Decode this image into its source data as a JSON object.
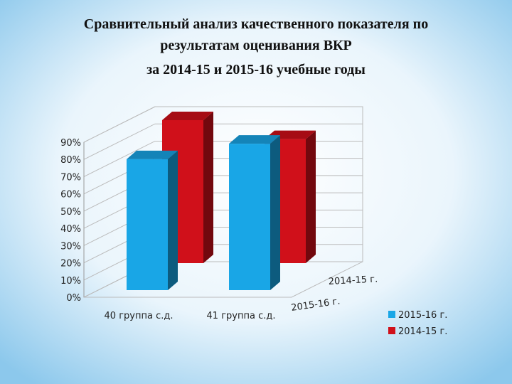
{
  "chart_data": {
    "type": "bar3d",
    "title": [
      "Сравнительный анализ качественного показателя по",
      "результатам оценивания ВКР",
      "за 2014-15 и 2015-16 учебные годы"
    ],
    "categories": [
      "40 группа с.д.",
      "41 группа с.д."
    ],
    "series": [
      {
        "name": "2014-15 г.",
        "color": "#d0101a",
        "values": [
          83,
          72
        ]
      },
      {
        "name": "2015-16 г.",
        "color": "#19a6e6",
        "values": [
          76,
          85
        ]
      }
    ],
    "ylim": [
      0,
      90
    ],
    "yticks": [
      {
        "value": 0,
        "label": "0%"
      },
      {
        "value": 10,
        "label": "10%"
      },
      {
        "value": 20,
        "label": "20%"
      },
      {
        "value": 30,
        "label": "30%"
      },
      {
        "value": 40,
        "label": "40%"
      },
      {
        "value": 50,
        "label": "50%"
      },
      {
        "value": 60,
        "label": "60%"
      },
      {
        "value": 70,
        "label": "70%"
      },
      {
        "value": 80,
        "label": "80%"
      },
      {
        "value": 90,
        "label": "90%"
      }
    ],
    "grid": true,
    "legend": "right"
  }
}
